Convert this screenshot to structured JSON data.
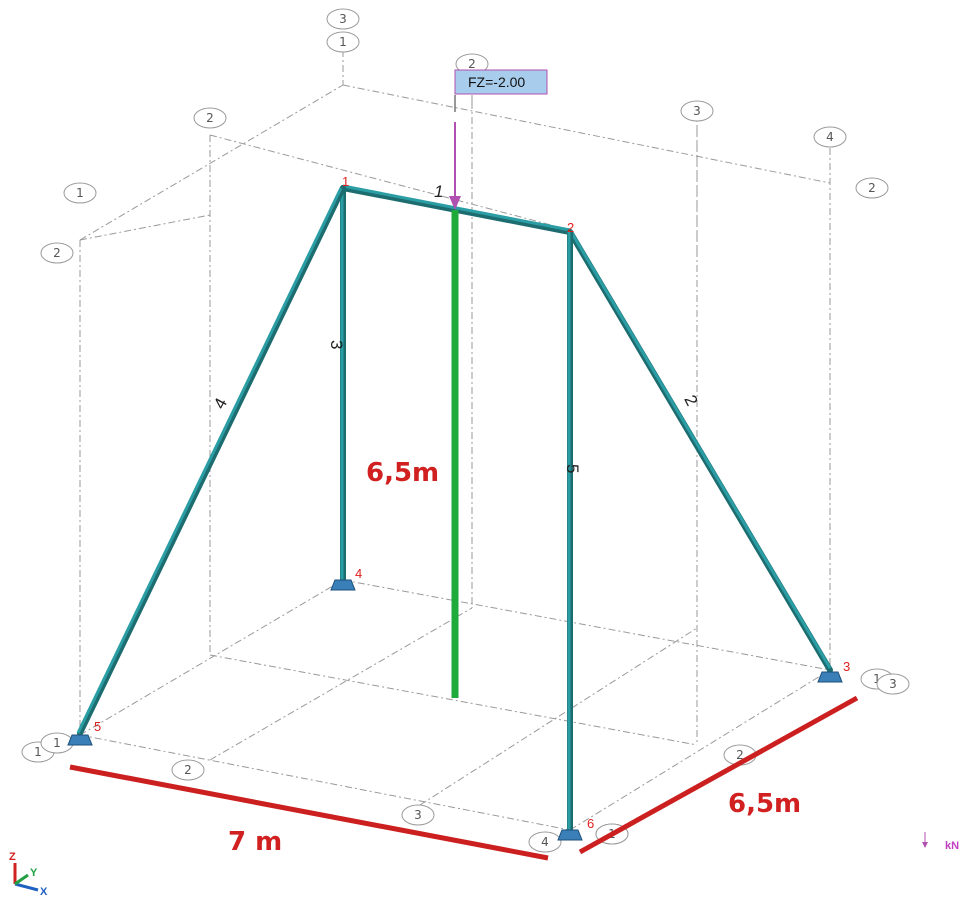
{
  "colors": {
    "member": "#2a9ea4",
    "member_dark": "#1c6c70",
    "highlight_member": "#1faa3c",
    "dimension": "#cc1f1f",
    "node_label": "#e02020",
    "load": "#b050b0",
    "load_box_fill": "#a8ccec",
    "grid": "#9a9a9a",
    "support": "#3a7fb8"
  },
  "grid_tags": [
    "3",
    "1",
    "2",
    "2",
    "3",
    "4",
    "2",
    "1",
    "2",
    "1",
    "1",
    "2",
    "3",
    "4",
    "1",
    "2",
    "1",
    "3",
    "1"
  ],
  "nodes": [
    "1",
    "2",
    "3",
    "4",
    "5",
    "6"
  ],
  "members": [
    "1",
    "2",
    "3",
    "4",
    "5"
  ],
  "load": {
    "label": "FZ=-2.00",
    "unit": "kN"
  },
  "dimensions": {
    "height": "6,5m",
    "width": "7 m",
    "depth": "6,5m"
  },
  "triad": {
    "z": "Z",
    "y": "Y",
    "x": "X"
  }
}
